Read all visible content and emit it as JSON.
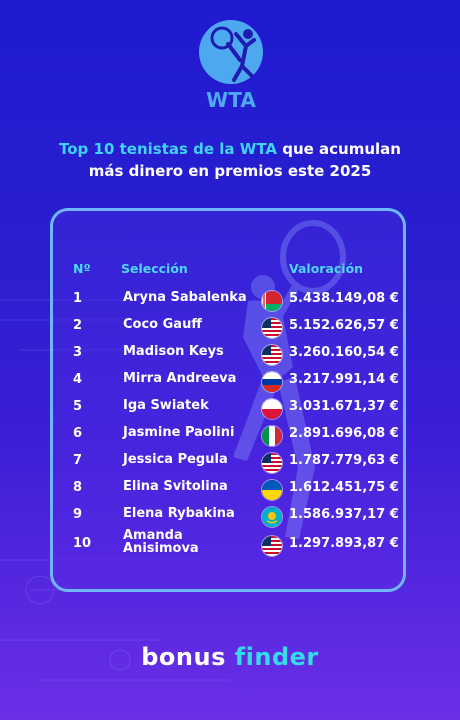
{
  "logo": {
    "text": "WTA"
  },
  "heading": {
    "line1_accent": "Top 10 tenistas de la WTA",
    "line1_rest": " que acumulan",
    "line2": "más dinero en premios este 2025"
  },
  "table": {
    "headers": {
      "num": "Nº",
      "name": "Selección",
      "value": "Valoración"
    },
    "rows": [
      {
        "num": "1",
        "name": "Aryna Sabalenka",
        "flag": "belarus-flag-icon",
        "value": "5.438.149,08 €"
      },
      {
        "num": "2",
        "name": "Coco Gauff",
        "flag": "usa-flag-icon",
        "value": "5.152.626,57 €"
      },
      {
        "num": "3",
        "name": "Madison Keys",
        "flag": "usa-flag-icon",
        "value": "3.260.160,54 €"
      },
      {
        "num": "4",
        "name": "Mirra Andreeva",
        "flag": "russia-flag-icon",
        "value": "3.217.991,14 €"
      },
      {
        "num": "5",
        "name": "Iga Swiatek",
        "flag": "poland-flag-icon",
        "value": "3.031.671,37 €"
      },
      {
        "num": "6",
        "name": "Jasmine Paolini",
        "flag": "italy-flag-icon",
        "value": "2.891.696,08 €"
      },
      {
        "num": "7",
        "name": "Jessica Pegula",
        "flag": "usa-flag-icon",
        "value": "1.787.779,63 €"
      },
      {
        "num": "8",
        "name": "Elina Svitolina",
        "flag": "ukraine-flag-icon",
        "value": "1.612.451,75 €"
      },
      {
        "num": "9",
        "name": "Elena Rybakina",
        "flag": "kazakhstan-flag-icon",
        "value": "1.586.937,17 €"
      },
      {
        "num": "10",
        "name": "Amanda Anisimova",
        "flag": "usa-flag-icon",
        "value": "1.297.893,87 €"
      }
    ]
  },
  "brand": {
    "part1": "bonus",
    "part2": "finder"
  },
  "colors": {
    "accent": "#3fd3f5",
    "border": "#6fb6ff",
    "brand_finder": "#34dce8"
  }
}
